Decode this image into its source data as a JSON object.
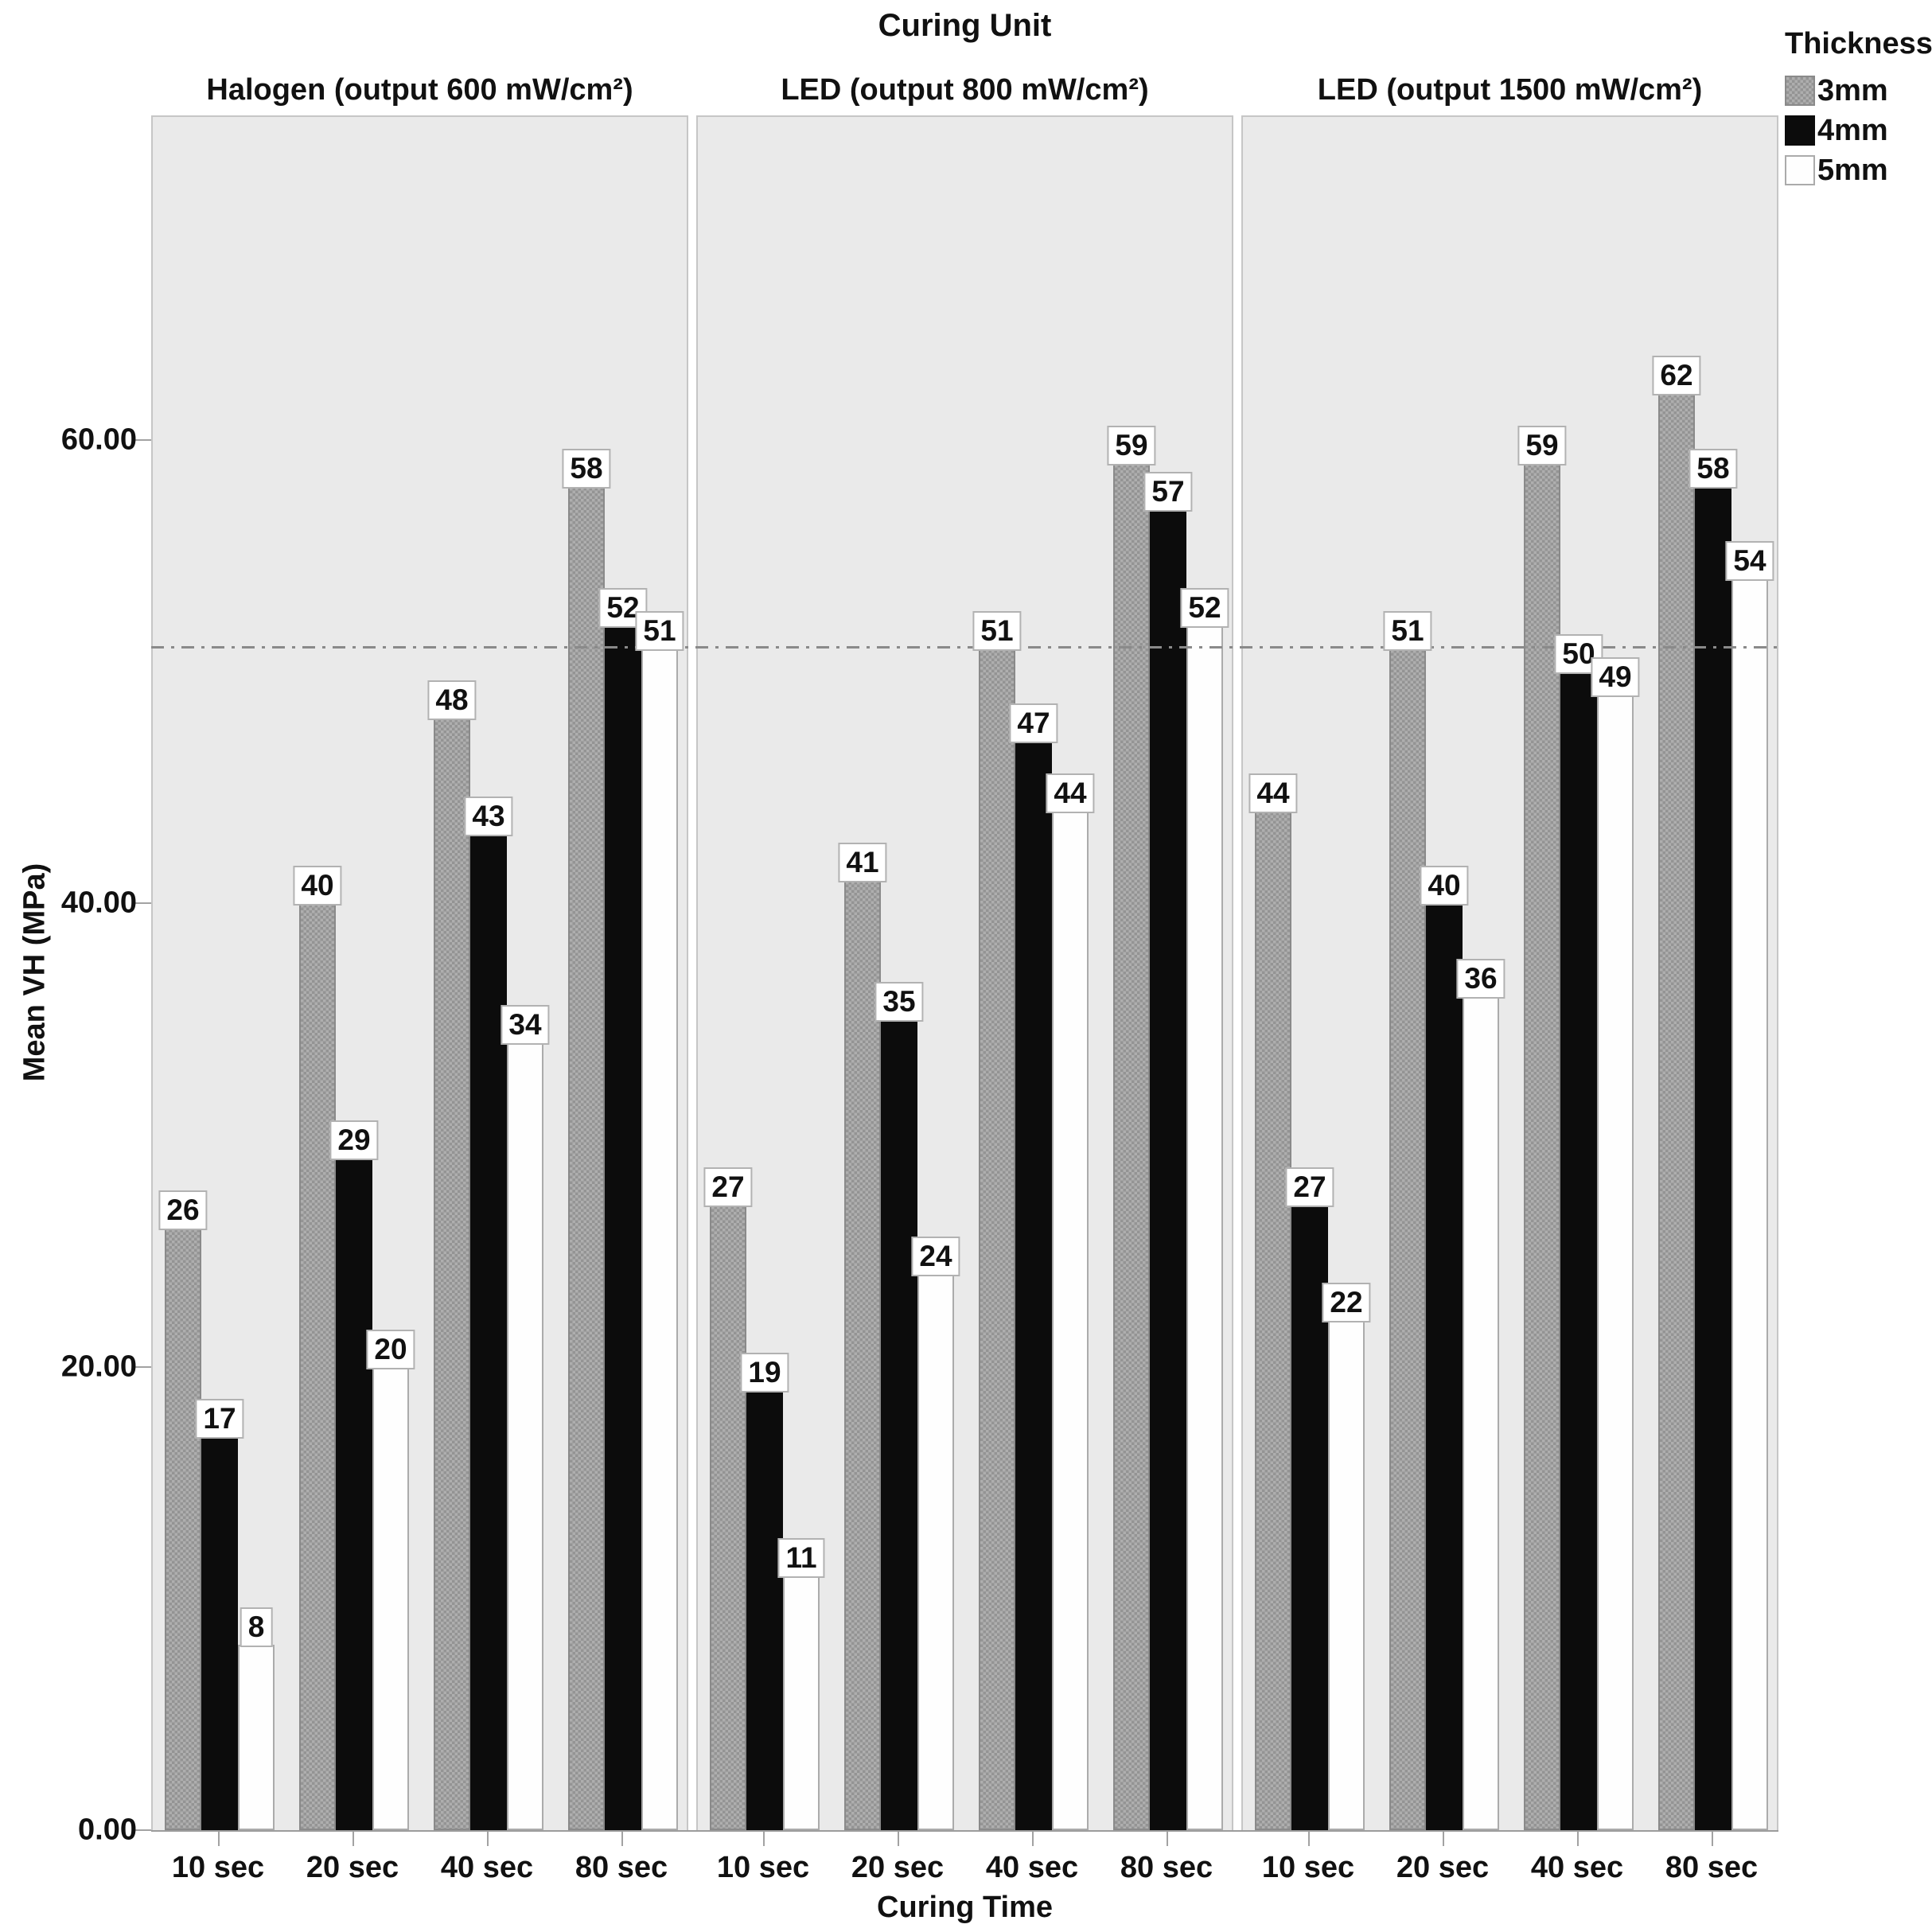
{
  "chart_data": {
    "type": "bar",
    "title": "Curing Unit",
    "xlabel": "Curing Time",
    "ylabel": "Mean VH (MPa)",
    "ylim": [
      0,
      74
    ],
    "yticks": [
      {
        "value": 0,
        "label": "0.00"
      },
      {
        "value": 20,
        "label": "20.00"
      },
      {
        "value": 40,
        "label": "40.00"
      },
      {
        "value": 60,
        "label": "60.00"
      }
    ],
    "reference_line_y": 51,
    "grid": "off",
    "legend_position": "top-right",
    "categories": [
      "10 sec",
      "20 sec",
      "40 sec",
      "80 sec"
    ],
    "legend": {
      "title": "Thickness",
      "entries": [
        "3mm",
        "4mm",
        "5mm"
      ]
    },
    "panels": [
      {
        "header": "Halogen (output 600 mW/cm²)",
        "series": [
          {
            "name": "3mm",
            "values": [
              26,
              40,
              48,
              58
            ]
          },
          {
            "name": "4mm",
            "values": [
              17,
              29,
              43,
              52
            ]
          },
          {
            "name": "5mm",
            "values": [
              8,
              20,
              34,
              51
            ]
          }
        ]
      },
      {
        "header": "LED (output 800 mW/cm²)",
        "series": [
          {
            "name": "3mm",
            "values": [
              27,
              41,
              51,
              59
            ]
          },
          {
            "name": "4mm",
            "values": [
              19,
              35,
              47,
              57
            ]
          },
          {
            "name": "5mm",
            "values": [
              11,
              24,
              44,
              52
            ]
          }
        ]
      },
      {
        "header": "LED (output 1500 mW/cm²)",
        "series": [
          {
            "name": "3mm",
            "values": [
              44,
              51,
              59,
              62
            ]
          },
          {
            "name": "4mm",
            "values": [
              27,
              40,
              50,
              58
            ]
          },
          {
            "name": "5mm",
            "values": [
              22,
              36,
              49,
              54
            ]
          }
        ]
      }
    ]
  },
  "colors": {
    "bar_3mm": "#a2a2a2",
    "bar_4mm": "#0c0c0c",
    "bar_5mm": "#fefefe",
    "panel_background": "#eaeaea",
    "axis_line": "#9c9c9c",
    "reference_line": "#8a8a8a",
    "text": "#111111"
  }
}
